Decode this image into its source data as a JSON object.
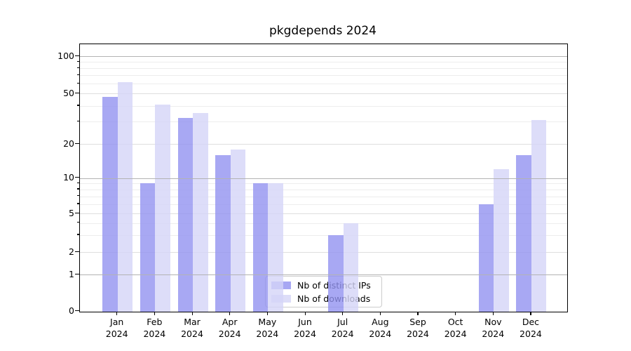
{
  "title": "pkgdepends 2024",
  "year": "2024",
  "colors": {
    "ips": "rgba(146,146,240,0.8)",
    "downloads": "rgba(213,213,247,0.8)",
    "ips_solid": "#a7a7f3",
    "downloads_solid": "#ddddf8",
    "grid_decade": "#b3b3b3",
    "grid_major": "#dedede",
    "grid_minor": "#ededed"
  },
  "legend": {
    "items": [
      {
        "label": "Nb of distinct IPs",
        "series": "ips"
      },
      {
        "label": "Nb of downloads",
        "series": "downloads"
      }
    ]
  },
  "y_axis": {
    "tick_values": [
      100,
      50,
      20,
      10,
      5,
      2,
      1,
      0
    ],
    "tick_labels": [
      "100",
      "50",
      "20",
      "10",
      "5",
      "2",
      "1",
      "0"
    ]
  },
  "x_axis": {
    "months": [
      "Jan",
      "Feb",
      "Mar",
      "Apr",
      "May",
      "Jun",
      "Jul",
      "Aug",
      "Sep",
      "Oct",
      "Nov",
      "Dec"
    ]
  },
  "chart_data": {
    "type": "bar",
    "title": "pkgdepends 2024",
    "categories": [
      "Jan 2024",
      "Feb 2024",
      "Mar 2024",
      "Apr 2024",
      "May 2024",
      "Jun 2024",
      "Jul 2024",
      "Aug 2024",
      "Sep 2024",
      "Oct 2024",
      "Nov 2024",
      "Dec 2024"
    ],
    "series": [
      {
        "name": "Nb of distinct IPs",
        "values": [
          47,
          9,
          32,
          16,
          9,
          0,
          3,
          0,
          0,
          0,
          6,
          16
        ]
      },
      {
        "name": "Nb of downloads",
        "values": [
          62,
          41,
          35,
          18,
          9,
          0,
          4,
          0,
          0,
          0,
          12,
          31
        ]
      }
    ],
    "xlabel": "",
    "ylabel": "",
    "yscale": "log-like (symlog), ticks 0,1,2,5,10,20,50,100",
    "ylim": [
      0,
      130
    ],
    "grid": "horizontal major + log minor gridlines",
    "legend_position": "lower center"
  }
}
